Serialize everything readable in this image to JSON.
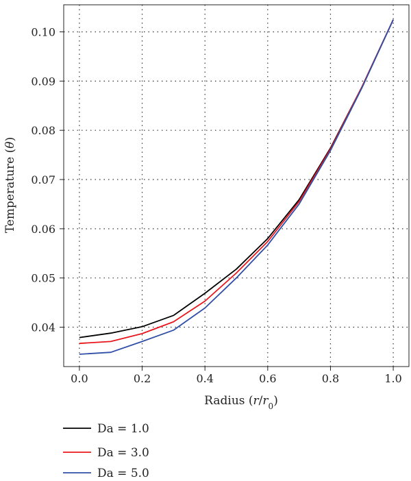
{
  "chart_data": {
    "type": "line",
    "title": "",
    "xlabel": "Radius (r/r0)",
    "ylabel": "Temperature (θ)",
    "xlim": [
      -0.05,
      1.05
    ],
    "ylim": [
      0.032,
      0.1055
    ],
    "grid": true,
    "grid_style": "dotted",
    "legend_position": "bottom-left, below plot",
    "x_ticks": [
      0.0,
      0.2,
      0.4,
      0.6,
      0.8,
      1.0
    ],
    "x_tick_labels": [
      "0.0",
      "0.2",
      "0.4",
      "0.6",
      "0.8",
      "1.0"
    ],
    "y_ticks": [
      0.04,
      0.05,
      0.06,
      0.07,
      0.08,
      0.09,
      0.1
    ],
    "y_tick_labels": [
      "0.04",
      "0.05",
      "0.06",
      "0.07",
      "0.08",
      "0.09",
      "0.10"
    ],
    "x": [
      0.0,
      0.1,
      0.2,
      0.3,
      0.4,
      0.5,
      0.6,
      0.7,
      0.8,
      0.9,
      1.0
    ],
    "series": [
      {
        "name": "Da = 1.0",
        "color": "#000000",
        "values": [
          0.0379,
          0.0388,
          0.0401,
          0.0424,
          0.0469,
          0.0518,
          0.058,
          0.0659,
          0.0764,
          0.0888,
          0.1025
        ]
      },
      {
        "name": "Da = 3.0",
        "color": "#e8161c",
        "values": [
          0.0367,
          0.0371,
          0.0387,
          0.0411,
          0.0453,
          0.051,
          0.0574,
          0.0655,
          0.0762,
          0.0888,
          0.1025
        ]
      },
      {
        "name": "Da = 5.0",
        "color": "#2f4ea6",
        "values": [
          0.0345,
          0.0349,
          0.0371,
          0.0394,
          0.0439,
          0.05,
          0.0567,
          0.065,
          0.0759,
          0.0886,
          0.1025
        ]
      }
    ]
  }
}
